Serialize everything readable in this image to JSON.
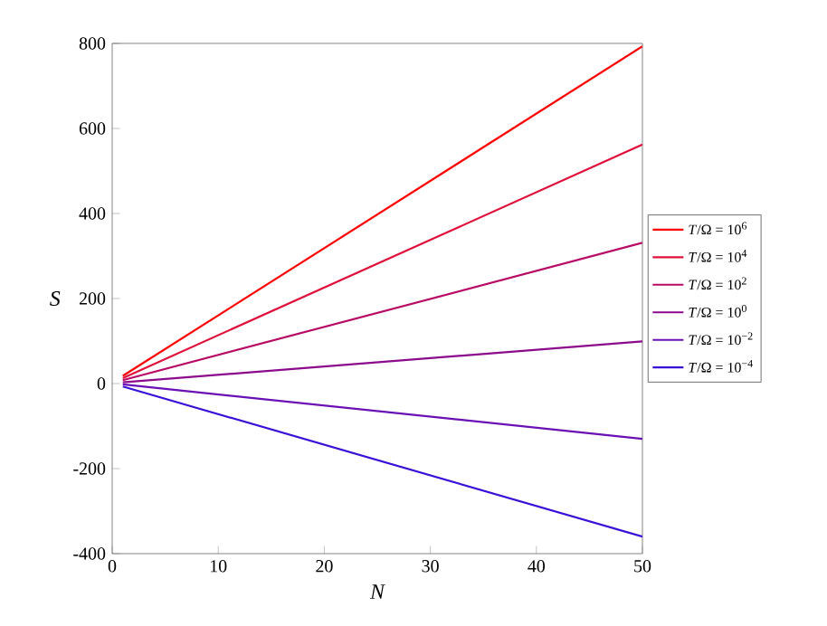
{
  "chart_data": {
    "type": "line",
    "xlabel": "N",
    "ylabel": "S",
    "x": [
      1,
      50
    ],
    "xlim": [
      0,
      50
    ],
    "ylim": [
      -400,
      800
    ],
    "xticks": [
      0,
      10,
      20,
      30,
      40,
      50
    ],
    "yticks": [
      -400,
      -200,
      0,
      200,
      400,
      600,
      800
    ],
    "grid": false,
    "legend": "right",
    "marker": "none",
    "line_style": "solid",
    "series": [
      {
        "name": "*T*/Ω = 10$^{6}$",
        "color": "#ff0000",
        "values": [
          18,
          793
        ]
      },
      {
        "name": "*T*/Ω = 10$^{4}$",
        "color": "#e0103a",
        "values": [
          13,
          562
        ]
      },
      {
        "name": "*T*/Ω = 10$^{2}$",
        "color": "#b80a64",
        "values": [
          8,
          331
        ]
      },
      {
        "name": "*T*/Ω = 10$^{0}$",
        "color": "#8c0a8c",
        "values": [
          3,
          99
        ]
      },
      {
        "name": "*T*/Ω = 10$^{−2}$",
        "color": "#6a10b4",
        "values": [
          -2,
          -130
        ]
      },
      {
        "name": "*T*/Ω = 10$^{−4}$",
        "color": "#3a10d8",
        "values": [
          -7,
          -360
        ]
      }
    ]
  }
}
